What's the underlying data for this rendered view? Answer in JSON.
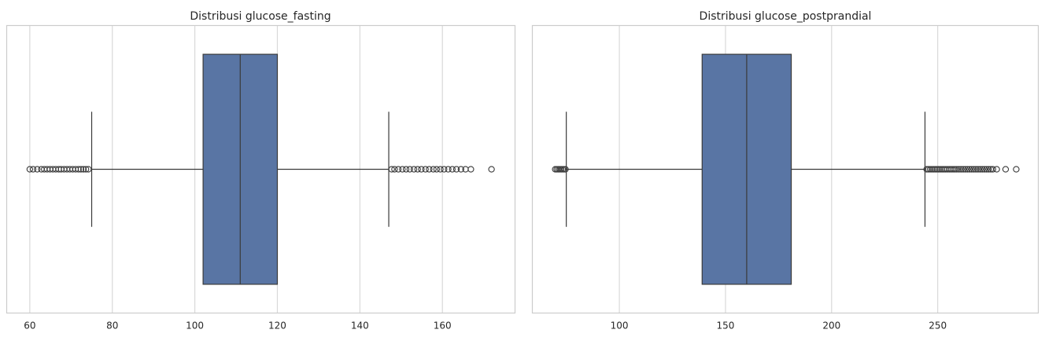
{
  "chart_data": [
    {
      "type": "boxplot",
      "orientation": "horizontal",
      "title": "Distribusi glucose_fasting",
      "xlabel": "",
      "ylabel": "",
      "xlim": [
        54.4,
        177.6
      ],
      "xticks": [
        60,
        80,
        100,
        120,
        140,
        160
      ],
      "tick_labels": [
        "60",
        "80",
        "100",
        "120",
        "140",
        "160"
      ],
      "grid": "vertical",
      "box": {
        "q1": 102,
        "median": 111,
        "q3": 120,
        "whisker_low": 75,
        "whisker_high": 147
      },
      "outliers": [
        60,
        60.8,
        61.8,
        62.8,
        63.5,
        64.2,
        64.9,
        65.6,
        66.3,
        67,
        67.6,
        68.3,
        69,
        69.7,
        70.4,
        71.1,
        71.8,
        72.4,
        73,
        73.6,
        74.2,
        147.7,
        148.4,
        149.3,
        150.3,
        151.2,
        152.1,
        153.1,
        154,
        154.9,
        155.9,
        156.8,
        157.8,
        158.6,
        159.5,
        160.4,
        161.4,
        162.4,
        163.4,
        164.5,
        165.6,
        166.9,
        171.9
      ],
      "colors": {
        "box": "#5975a4",
        "line": "#3a3a3a",
        "grid": "#d9d9d9",
        "frame": "#cccccc"
      }
    },
    {
      "type": "boxplot",
      "orientation": "horizontal",
      "title": "Distribusi glucose_postprandial",
      "xlabel": "",
      "ylabel": "",
      "xlim": [
        59,
        297.4
      ],
      "xticks": [
        100,
        150,
        200,
        250
      ],
      "tick_labels": [
        "100",
        "150",
        "200",
        "250"
      ],
      "grid": "vertical",
      "box": {
        "q1": 139,
        "median": 160,
        "q3": 181,
        "whisker_low": 75,
        "whisker_high": 244
      },
      "outliers": [
        69.8,
        70.5,
        71.2,
        71.9,
        72.6,
        73.3,
        74,
        74.6,
        244.8,
        245.6,
        246.4,
        247.2,
        248,
        248.8,
        249.6,
        250.4,
        251.2,
        252,
        252.8,
        253.6,
        254.5,
        255.4,
        256.3,
        257.2,
        258.1,
        259,
        260,
        261,
        262,
        263,
        264,
        265,
        266,
        267,
        268,
        269,
        270,
        271,
        272,
        273,
        274,
        275,
        276,
        277.8,
        282,
        287
      ]
    }
  ]
}
